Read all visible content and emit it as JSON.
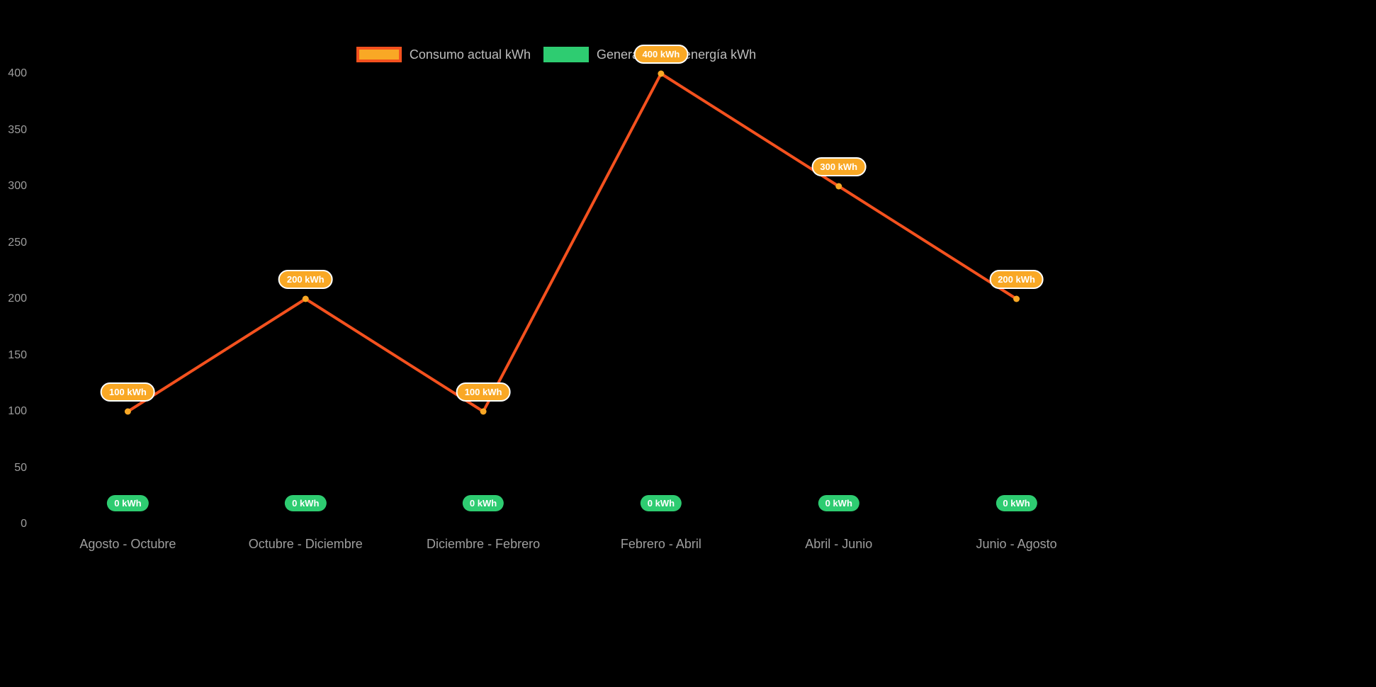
{
  "chart_data": {
    "type": "line",
    "title": "",
    "categories": [
      "Agosto - Octubre",
      "Octubre - Diciembre",
      "Diciembre - Febrero",
      "Febrero - Abril",
      "Abril - Junio",
      "Junio - Agosto"
    ],
    "series": [
      {
        "name": "Consumo actual kWh",
        "slug": "consumo-actual",
        "values": [
          100,
          200,
          100,
          400,
          300,
          200
        ],
        "labels": [
          "100 kWh",
          "200 kWh",
          "100 kWh",
          "400 kWh",
          "300 kWh",
          "200 kWh"
        ],
        "show_line": true,
        "line_color": "#f4511e",
        "point_color": "#f9a825",
        "pill_bg": "#f9a825",
        "pill_border": "#ffffff",
        "swatch_fill": "#f9a825",
        "swatch_border": "#f4511e"
      },
      {
        "name": "Generación de energía kWh",
        "slug": "generacion-energia",
        "values": [
          0,
          0,
          0,
          0,
          0,
          0
        ],
        "labels": [
          "0 kWh",
          "0 kWh",
          "0 kWh",
          "0 kWh",
          "0 kWh",
          "0 kWh"
        ],
        "show_line": false,
        "line_color": "#2ecc71",
        "point_color": "#2ecc71",
        "pill_bg": "#2ecc71",
        "pill_border": "",
        "swatch_fill": "#2ecc71",
        "swatch_border": "#2ecc71"
      }
    ],
    "ylim": [
      0,
      400
    ],
    "yticks": [
      0,
      50,
      100,
      150,
      200,
      250,
      300,
      350,
      400
    ],
    "xlabel": "",
    "ylabel": "",
    "grid": false,
    "legend_position": "top",
    "background": "#000000",
    "axis_text_color": "#9e9e9e",
    "legend_text_color": "#bdbdbd"
  }
}
